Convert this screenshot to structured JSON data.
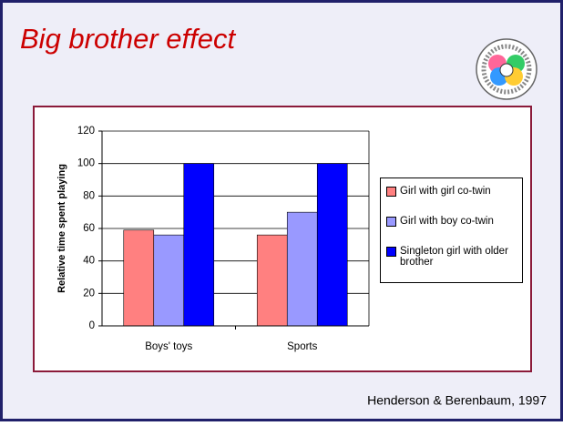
{
  "title": "Big brother effect",
  "citation": "Henderson & Berenbaum, 1997",
  "chart_data": {
    "type": "bar",
    "y_label": "Relative time spent playing",
    "categories": [
      "Boys' toys",
      "Sports"
    ],
    "series": [
      {
        "name": "Girl with girl co-twin",
        "color": "#ff8080",
        "values": [
          59,
          56
        ]
      },
      {
        "name": "Girl with boy co-twin",
        "color": "#9999ff",
        "values": [
          56,
          70
        ]
      },
      {
        "name": "Singleton girl with older brother",
        "color": "#0000ff",
        "values": [
          100,
          100
        ]
      }
    ],
    "ylim": [
      0,
      120
    ],
    "yticks": [
      0,
      20,
      40,
      60,
      80,
      100,
      120
    ],
    "grid": true,
    "legend": "right"
  }
}
